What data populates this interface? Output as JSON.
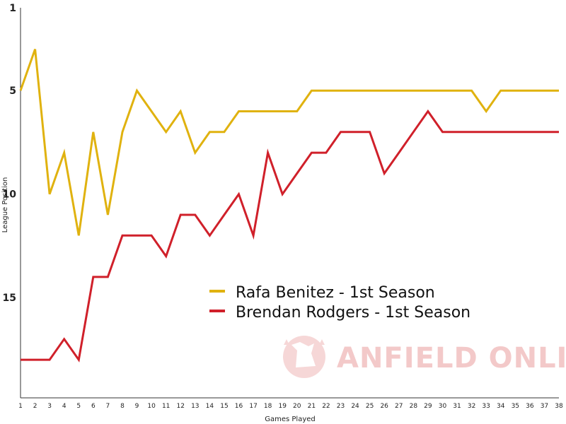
{
  "chart_data": {
    "type": "line",
    "title": "",
    "xlabel": "Games Played",
    "ylabel": "League Position",
    "x": [
      1,
      2,
      3,
      4,
      5,
      6,
      7,
      8,
      9,
      10,
      11,
      12,
      13,
      14,
      15,
      16,
      17,
      18,
      19,
      20,
      21,
      22,
      23,
      24,
      25,
      26,
      27,
      28,
      29,
      30,
      31,
      32,
      33,
      34,
      35,
      36,
      37,
      38
    ],
    "xlim": [
      1,
      38
    ],
    "ylim": [
      1,
      19.6
    ],
    "y_inverted": true,
    "y_ticks": [
      1,
      5,
      10,
      15
    ],
    "grid": false,
    "legend_placement": "center-right",
    "series": [
      {
        "name": "Rafa Benitez - 1st Season",
        "color": "#e0b20f",
        "values": [
          5,
          3,
          10,
          8,
          12,
          7,
          11,
          7,
          5,
          6,
          7,
          6,
          8,
          7,
          7,
          6,
          6,
          6,
          6,
          6,
          5,
          5,
          5,
          5,
          5,
          5,
          5,
          5,
          5,
          5,
          5,
          5,
          6,
          5,
          5,
          5,
          5,
          5
        ]
      },
      {
        "name": "Brendan Rodgers - 1st Season",
        "color": "#d0202a",
        "values": [
          18,
          18,
          18,
          17,
          18,
          14,
          14,
          12,
          12,
          12,
          13,
          11,
          11,
          12,
          11,
          10,
          12,
          8,
          10,
          9,
          8,
          8,
          7,
          7,
          7,
          9,
          8,
          7,
          6,
          7,
          7,
          7,
          7,
          7,
          7,
          7,
          7,
          7
        ]
      }
    ]
  },
  "watermark": {
    "text": "ANFIELD ONLINE",
    "color": "#f3c9c9"
  }
}
